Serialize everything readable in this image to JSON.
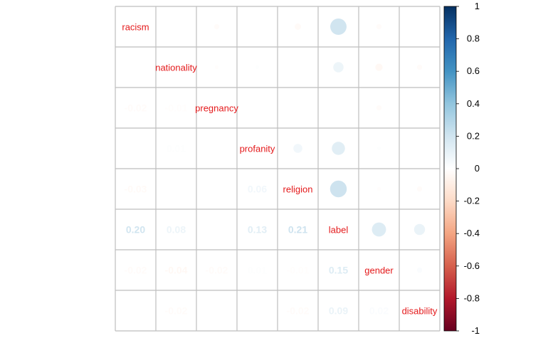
{
  "chart_data": {
    "type": "heatmap",
    "style": "corrplot-mixed",
    "upper_method": "circle",
    "lower_method": "number",
    "variables": [
      "racism",
      "nationality",
      "pregnancy",
      "profanity",
      "religion",
      "label",
      "gender",
      "disability"
    ],
    "matrix": [
      [
        1.0,
        0.0,
        -0.02,
        0.0,
        -0.03,
        0.2,
        -0.02,
        0.0
      ],
      [
        0.0,
        1.0,
        -0.01,
        0.01,
        0.0,
        0.08,
        -0.04,
        -0.02
      ],
      [
        -0.02,
        -0.01,
        1.0,
        0.0,
        0.0,
        0.0,
        -0.02,
        0.0
      ],
      [
        0.0,
        0.01,
        0.0,
        1.0,
        0.06,
        0.13,
        0.01,
        0.0
      ],
      [
        -0.03,
        0.0,
        0.0,
        0.06,
        1.0,
        0.21,
        -0.01,
        -0.02
      ],
      [
        0.2,
        0.08,
        0.0,
        0.13,
        0.21,
        1.0,
        0.15,
        0.09
      ],
      [
        -0.02,
        -0.04,
        -0.02,
        0.01,
        -0.01,
        0.15,
        1.0,
        0.02
      ],
      [
        0.0,
        -0.02,
        0.0,
        0.0,
        -0.02,
        0.09,
        0.02,
        1.0
      ]
    ],
    "lower_labels": [
      [
        "",
        "",
        "",
        "",
        "",
        "",
        "",
        ""
      ],
      [
        "0.00",
        "",
        "",
        "",
        "",
        "",
        "",
        ""
      ],
      [
        "-0.02",
        "-0.01",
        "",
        "",
        "",
        "",
        "",
        ""
      ],
      [
        "0.00",
        "0.01",
        "0.00",
        "",
        "",
        "",
        "",
        ""
      ],
      [
        "-0.03",
        "0.00",
        "0.00",
        "0.06",
        "",
        "",
        "",
        ""
      ],
      [
        "0.20",
        "0.08",
        "0.00",
        "0.13",
        "0.21",
        "",
        "",
        ""
      ],
      [
        "-0.02",
        "-0.04",
        "-0.02",
        "0.01",
        "-0.01",
        "0.15",
        "",
        ""
      ],
      [
        "0.00",
        "-0.02",
        "0.00",
        "0.00",
        "-0.02",
        "0.09",
        "0.02",
        ""
      ]
    ],
    "colorbar": {
      "range": [
        -1,
        1
      ],
      "ticks": [
        "1",
        "0.8",
        "0.6",
        "0.4",
        "0.2",
        "0",
        "-0.2",
        "-0.4",
        "-0.6",
        "-0.8",
        "-1"
      ],
      "colors": [
        "#67001f",
        "#b2182b",
        "#d6604d",
        "#f4a582",
        "#fddbc7",
        "#ffffff",
        "#d1e5f0",
        "#92c5de",
        "#4393c3",
        "#2166ac",
        "#053061"
      ]
    },
    "label_color": "#e41a1c",
    "grid_color": "#bebebe"
  }
}
